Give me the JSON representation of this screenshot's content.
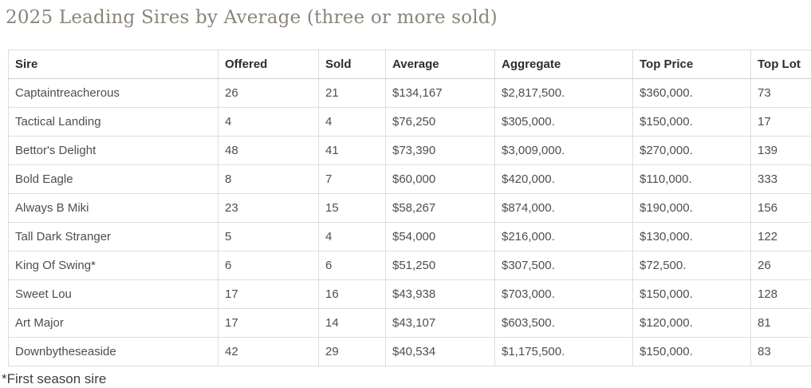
{
  "page": {
    "title": "2025 Leading Sires by Average (three or more sold)",
    "footnote": "*First season sire"
  },
  "colors": {
    "title_text": "#8b8578",
    "header_text": "#2d2d2d",
    "cell_text": "#4e4e4e",
    "border": "#dddddd",
    "background": "#ffffff"
  },
  "table": {
    "columns": [
      "Sire",
      "Offered",
      "Sold",
      "Average",
      "Aggregate",
      "Top Price",
      "Top Lot"
    ],
    "column_keys": [
      "sire",
      "offered",
      "sold",
      "average",
      "aggregate",
      "top-price",
      "top-lot"
    ],
    "rows": [
      [
        "Captaintreacherous",
        "26",
        "21",
        "$134,167",
        "$2,817,500.",
        "$360,000.",
        "73"
      ],
      [
        "Tactical Landing",
        "4",
        "4",
        "$76,250",
        "$305,000.",
        "$150,000.",
        "17"
      ],
      [
        "Bettor's Delight",
        "48",
        "41",
        "$73,390",
        "$3,009,000.",
        "$270,000.",
        "139"
      ],
      [
        "Bold Eagle",
        "8",
        "7",
        "$60,000",
        "$420,000.",
        "$110,000.",
        "333"
      ],
      [
        "Always B Miki",
        "23",
        "15",
        "$58,267",
        "$874,000.",
        "$190,000.",
        "156"
      ],
      [
        "Tall Dark Stranger",
        "5",
        "4",
        "$54,000",
        "$216,000.",
        "$130,000.",
        "122"
      ],
      [
        "King Of Swing*",
        "6",
        "6",
        "$51,250",
        "$307,500.",
        "$72,500.",
        "26"
      ],
      [
        "Sweet Lou",
        "17",
        "16",
        "$43,938",
        "$703,000.",
        "$150,000.",
        "128"
      ],
      [
        "Art Major",
        "17",
        "14",
        "$43,107",
        "$603,500.",
        "$120,000.",
        "81"
      ],
      [
        "Downbytheseaside",
        "42",
        "29",
        "$40,534",
        "$1,175,500.",
        "$150,000.",
        "83"
      ]
    ]
  }
}
